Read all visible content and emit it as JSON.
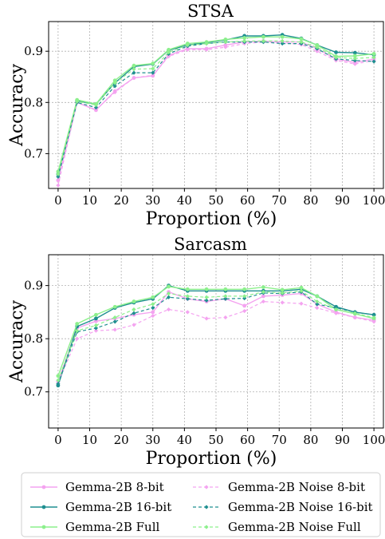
{
  "chart_data": [
    {
      "type": "line",
      "title": "STSA",
      "xlabel": "Proportion (%)",
      "ylabel": "Accuracy",
      "x": [
        0,
        6,
        12,
        18,
        24,
        30,
        35,
        41,
        47,
        53,
        59,
        65,
        71,
        77,
        82,
        88,
        94,
        100
      ],
      "xticks": [
        0,
        10,
        20,
        30,
        40,
        50,
        60,
        70,
        80,
        90,
        100
      ],
      "yticks": [
        0.7,
        0.8,
        0.9
      ],
      "xlim": [
        -3,
        103
      ],
      "ylim": [
        0.632,
        0.958
      ],
      "grid": true,
      "series": [
        {
          "name": "Gemma-2B 8-bit",
          "color": "#f4a3f0",
          "dashed": false,
          "values": [
            0.648,
            0.8,
            0.785,
            0.822,
            0.848,
            0.852,
            0.892,
            0.905,
            0.905,
            0.912,
            0.918,
            0.92,
            0.918,
            0.918,
            0.905,
            0.885,
            0.878,
            0.885
          ]
        },
        {
          "name": "Gemma-2B 16-bit",
          "color": "#1f8f90",
          "dashed": false,
          "values": [
            0.66,
            0.803,
            0.797,
            0.838,
            0.87,
            0.875,
            0.902,
            0.912,
            0.917,
            0.922,
            0.93,
            0.93,
            0.932,
            0.925,
            0.912,
            0.898,
            0.897,
            0.893
          ]
        },
        {
          "name": "Gemma-2B Full",
          "color": "#8cf08c",
          "dashed": false,
          "values": [
            0.665,
            0.805,
            0.797,
            0.843,
            0.872,
            0.876,
            0.903,
            0.915,
            0.918,
            0.923,
            0.926,
            0.928,
            0.928,
            0.924,
            0.912,
            0.89,
            0.891,
            0.895
          ]
        },
        {
          "name": "Gemma-2B Noise 8-bit",
          "color": "#f4a3f0",
          "dashed": true,
          "values": [
            0.638,
            0.8,
            0.786,
            0.82,
            0.848,
            0.853,
            0.89,
            0.903,
            0.903,
            0.908,
            0.915,
            0.918,
            0.917,
            0.913,
            0.9,
            0.882,
            0.875,
            0.882
          ]
        },
        {
          "name": "Gemma-2B Noise 16-bit",
          "color": "#1f8f90",
          "dashed": true,
          "values": [
            0.655,
            0.8,
            0.79,
            0.832,
            0.858,
            0.858,
            0.895,
            0.91,
            0.915,
            0.918,
            0.918,
            0.918,
            0.915,
            0.915,
            0.905,
            0.885,
            0.882,
            0.88
          ]
        },
        {
          "name": "Gemma-2B Noise Full",
          "color": "#8cf08c",
          "dashed": true,
          "values": [
            0.66,
            0.802,
            0.795,
            0.838,
            0.865,
            0.866,
            0.898,
            0.912,
            0.915,
            0.918,
            0.92,
            0.92,
            0.92,
            0.918,
            0.908,
            0.888,
            0.886,
            0.888
          ]
        }
      ]
    },
    {
      "type": "line",
      "title": "Sarcasm",
      "xlabel": "Proportion (%)",
      "ylabel": "Accuracy",
      "x": [
        0,
        6,
        12,
        18,
        24,
        30,
        35,
        41,
        47,
        53,
        59,
        65,
        71,
        77,
        82,
        88,
        94,
        100
      ],
      "xticks": [
        0,
        10,
        20,
        30,
        40,
        50,
        60,
        70,
        80,
        90,
        100
      ],
      "yticks": [
        0.7,
        0.8,
        0.9
      ],
      "xlim": [
        -3,
        103
      ],
      "ylim": [
        0.632,
        0.958
      ],
      "grid": true,
      "series": [
        {
          "name": "Gemma-2B 8-bit",
          "color": "#f4a3f0",
          "dashed": false,
          "values": [
            0.72,
            0.82,
            0.833,
            0.838,
            0.845,
            0.85,
            0.888,
            0.875,
            0.87,
            0.875,
            0.862,
            0.88,
            0.882,
            0.885,
            0.865,
            0.85,
            0.84,
            0.835
          ]
        },
        {
          "name": "Gemma-2B 16-bit",
          "color": "#1f8f90",
          "dashed": false,
          "values": [
            0.712,
            0.823,
            0.838,
            0.858,
            0.868,
            0.875,
            0.9,
            0.89,
            0.89,
            0.89,
            0.89,
            0.89,
            0.89,
            0.893,
            0.88,
            0.86,
            0.85,
            0.845
          ]
        },
        {
          "name": "Gemma-2B Full",
          "color": "#8cf08c",
          "dashed": false,
          "values": [
            0.73,
            0.828,
            0.845,
            0.86,
            0.87,
            0.878,
            0.898,
            0.893,
            0.893,
            0.893,
            0.893,
            0.897,
            0.892,
            0.896,
            0.88,
            0.855,
            0.847,
            0.838
          ]
        },
        {
          "name": "Gemma-2B Noise 8-bit",
          "color": "#f4a3f0",
          "dashed": true,
          "values": [
            0.718,
            0.8,
            0.815,
            0.817,
            0.826,
            0.843,
            0.855,
            0.85,
            0.838,
            0.84,
            0.852,
            0.87,
            0.868,
            0.866,
            0.858,
            0.848,
            0.84,
            0.832
          ]
        },
        {
          "name": "Gemma-2B Noise 16-bit",
          "color": "#1f8f90",
          "dashed": true,
          "values": [
            0.715,
            0.813,
            0.82,
            0.832,
            0.848,
            0.858,
            0.878,
            0.875,
            0.872,
            0.875,
            0.876,
            0.886,
            0.885,
            0.888,
            0.865,
            0.858,
            0.85,
            0.845
          ]
        },
        {
          "name": "Gemma-2B Noise Full",
          "color": "#8cf08c",
          "dashed": true,
          "values": [
            0.722,
            0.815,
            0.825,
            0.84,
            0.855,
            0.865,
            0.885,
            0.88,
            0.878,
            0.88,
            0.88,
            0.888,
            0.886,
            0.89,
            0.87,
            0.855,
            0.848,
            0.84
          ]
        }
      ]
    }
  ],
  "legend": {
    "placement": "bottom",
    "columns": 2,
    "entries": [
      {
        "label": "Gemma-2B 8-bit",
        "color": "#f4a3f0",
        "dashed": false
      },
      {
        "label": "Gemma-2B Noise 8-bit",
        "color": "#f4a3f0",
        "dashed": true
      },
      {
        "label": "Gemma-2B 16-bit",
        "color": "#1f8f90",
        "dashed": false
      },
      {
        "label": "Gemma-2B Noise 16-bit",
        "color": "#1f8f90",
        "dashed": true
      },
      {
        "label": "Gemma-2B Full",
        "color": "#8cf08c",
        "dashed": false
      },
      {
        "label": "Gemma-2B Noise Full",
        "color": "#8cf08c",
        "dashed": true
      }
    ]
  }
}
